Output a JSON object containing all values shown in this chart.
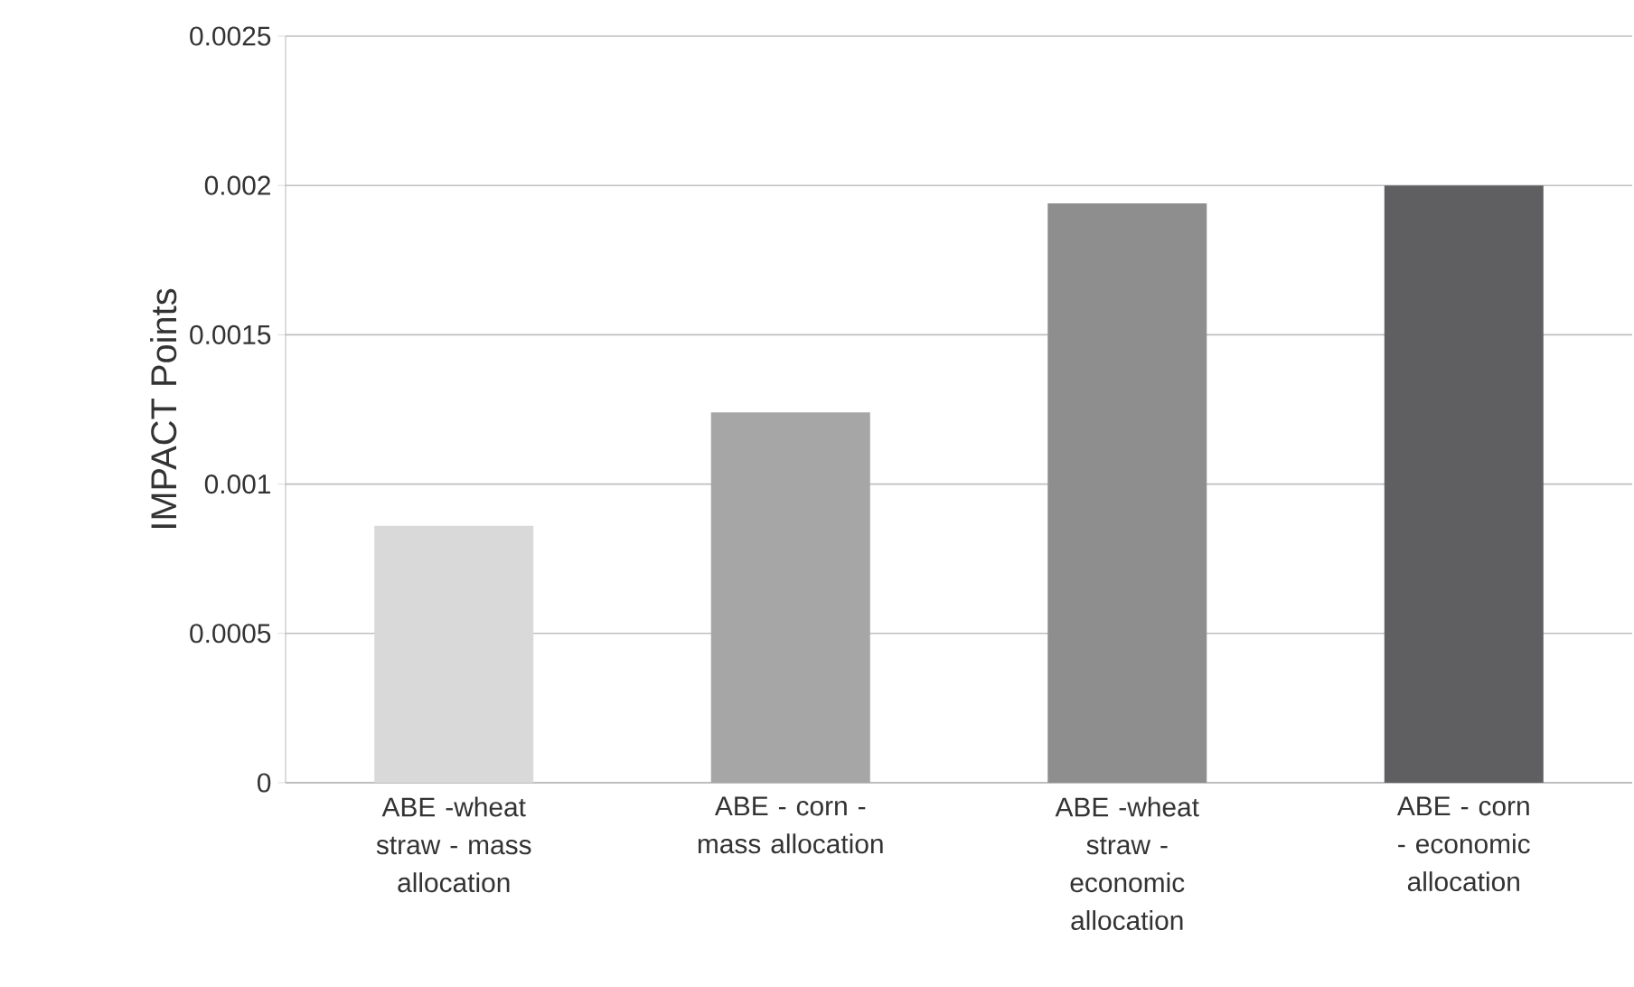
{
  "chart_data": {
    "type": "bar",
    "ylabel": "IMPACT Points",
    "categories": [
      "ABE -wheat straw - mass allocation",
      "ABE - corn - mass allocation",
      "ABE -wheat straw - economic allocation",
      "ABE - corn - economic allocation"
    ],
    "values": [
      0.00086,
      0.00124,
      0.00194,
      0.002
    ],
    "colors": [
      "#d9d9d9",
      "#a6a6a6",
      "#8e8e8f",
      "#5f5f61"
    ],
    "ylim": [
      0,
      0.0025
    ],
    "yticks": [
      0,
      0.0005,
      0.001,
      0.0015,
      0.002,
      0.0025
    ],
    "grid": "y"
  }
}
